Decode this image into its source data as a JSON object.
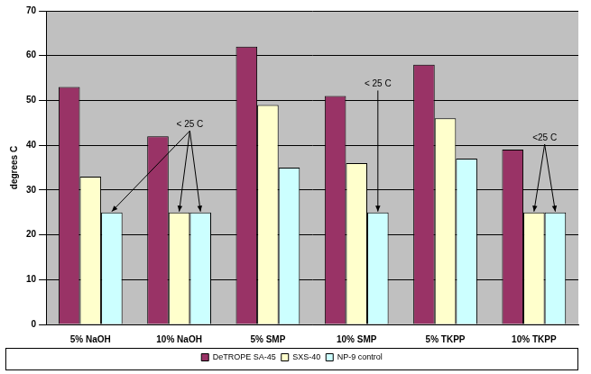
{
  "chart_data": {
    "type": "bar",
    "y_label": "degrees C",
    "categories": [
      "5% NaOH",
      "10% NaOH",
      "5% SMP",
      "10% SMP",
      "5% TKPP",
      "10% TKPP"
    ],
    "series": [
      {
        "name": "DeTROPE SA-45",
        "color": "#993366",
        "values": [
          53,
          42,
          62,
          51,
          58,
          39
        ]
      },
      {
        "name": "SXS-40",
        "color": "#FFFFCC",
        "values": [
          33,
          25,
          49,
          36,
          46,
          25
        ]
      },
      {
        "name": "NP-9 control",
        "color": "#CCFFFF",
        "values": [
          25,
          25,
          35,
          25,
          37,
          25
        ]
      }
    ],
    "ylim": [
      0,
      70
    ],
    "yticks": [
      0,
      10,
      20,
      30,
      40,
      50,
      60,
      70
    ],
    "grid": true,
    "legend": "bottom",
    "annotations": [
      {
        "text": "< 25 C",
        "targets": [
          {
            "category": "5% NaOH",
            "series": "NP-9 control"
          },
          {
            "category": "10% NaOH",
            "series": "SXS-40"
          },
          {
            "category": "10% NaOH",
            "series": "NP-9 control"
          }
        ]
      },
      {
        "text": "< 25 C",
        "targets": [
          {
            "category": "10% SMP",
            "series": "NP-9 control"
          }
        ]
      },
      {
        "text": "<25 C",
        "targets": [
          {
            "category": "10% TKPP",
            "series": "SXS-40"
          },
          {
            "category": "10% TKPP",
            "series": "NP-9 control"
          }
        ]
      }
    ]
  }
}
